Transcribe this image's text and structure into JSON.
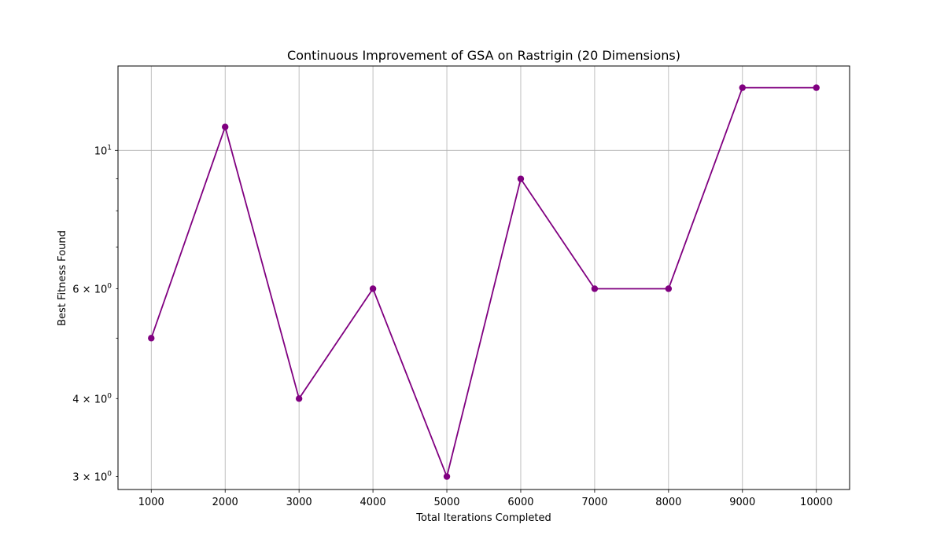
{
  "chart_data": {
    "type": "line",
    "title": "Continuous Improvement of GSA on Rastrigin (20 Dimensions)",
    "xlabel": "Total Iterations Completed",
    "ylabel": "Best Fitness Found",
    "yscale": "log",
    "grid": true,
    "xlim": [
      550,
      10450
    ],
    "ylim": [
      2.86,
      13.65
    ],
    "x_ticks": [
      {
        "value": 1000,
        "label": "1000"
      },
      {
        "value": 2000,
        "label": "2000"
      },
      {
        "value": 3000,
        "label": "3000"
      },
      {
        "value": 4000,
        "label": "4000"
      },
      {
        "value": 5000,
        "label": "5000"
      },
      {
        "value": 6000,
        "label": "6000"
      },
      {
        "value": 7000,
        "label": "7000"
      },
      {
        "value": 8000,
        "label": "8000"
      },
      {
        "value": 9000,
        "label": "9000"
      },
      {
        "value": 10000,
        "label": "10000"
      }
    ],
    "y_major_ticks": [
      {
        "value": 10,
        "base": "10",
        "exp": "1"
      }
    ],
    "y_minor_ticks": [
      {
        "value": 3,
        "coef": "3",
        "base": "10",
        "exp": "0"
      },
      {
        "value": 4,
        "coef": "4",
        "base": "10",
        "exp": "0"
      },
      {
        "value": 5,
        "coef": "",
        "base": "",
        "exp": ""
      },
      {
        "value": 6,
        "coef": "6",
        "base": "10",
        "exp": "0"
      },
      {
        "value": 7,
        "coef": "",
        "base": "",
        "exp": ""
      },
      {
        "value": 8,
        "coef": "",
        "base": "",
        "exp": ""
      },
      {
        "value": 9,
        "coef": "",
        "base": "",
        "exp": ""
      }
    ],
    "series": [
      {
        "color": "#800080",
        "marker": "circle",
        "x": [
          1000,
          2000,
          3000,
          4000,
          5000,
          6000,
          7000,
          8000,
          9000,
          10000
        ],
        "y": [
          5.0,
          10.9,
          4.0,
          6.0,
          3.0,
          9.0,
          6.0,
          6.0,
          12.6,
          12.6
        ]
      }
    ]
  }
}
